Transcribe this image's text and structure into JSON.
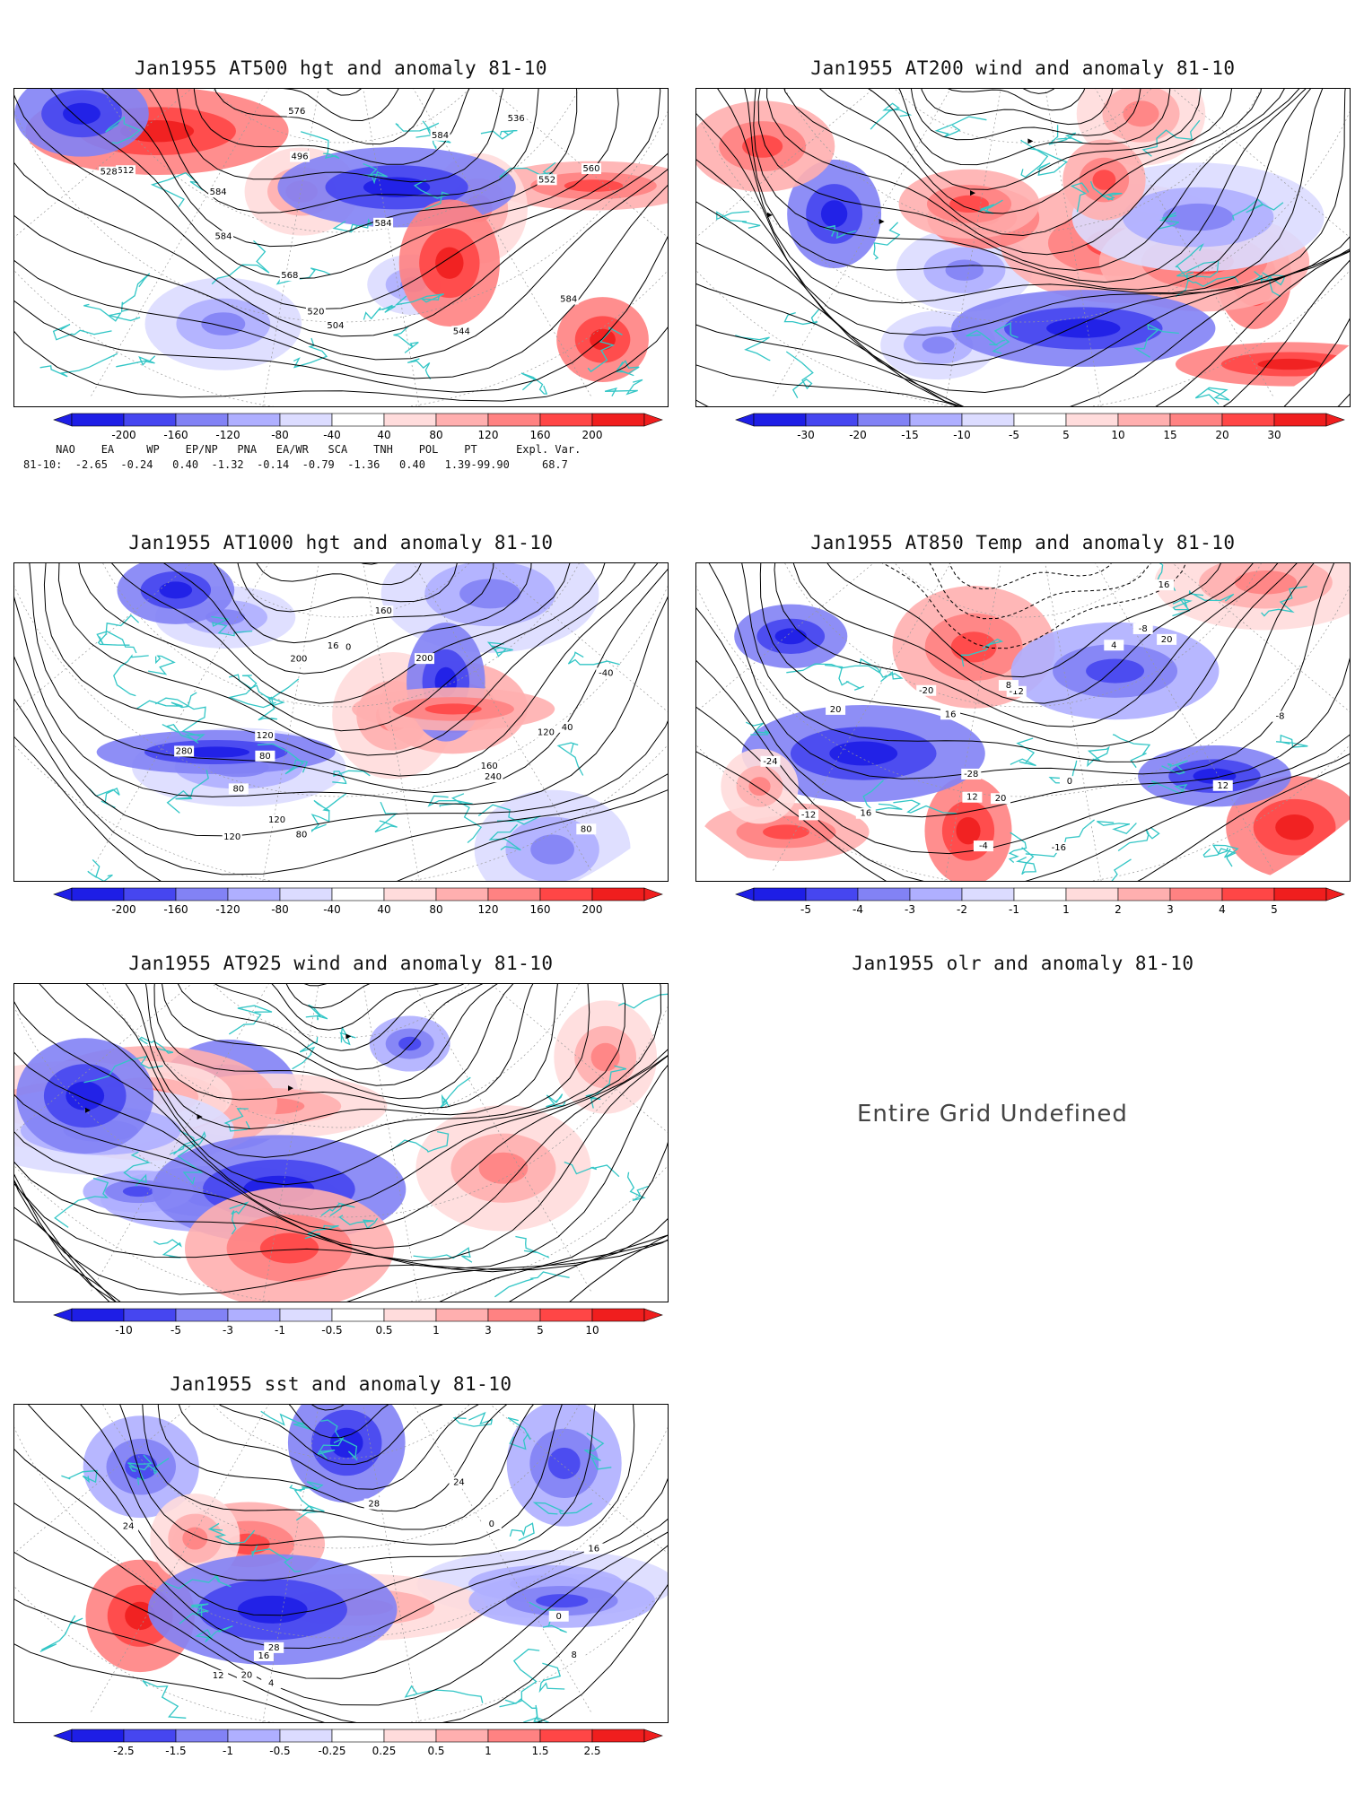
{
  "panels": [
    {
      "id": "p500",
      "title": "Jan1955 AT500 hgt and anomaly 81-10",
      "ticks": [
        "-200",
        "-160",
        "-120",
        "-80",
        "-40",
        "40",
        "80",
        "120",
        "160",
        "200"
      ],
      "contour_labels": [
        "496",
        "504",
        "512",
        "520",
        "528",
        "536",
        "544",
        "552",
        "560",
        "568",
        "576",
        "584",
        "584",
        "584",
        "584",
        "584"
      ],
      "theme": "warm-cold"
    },
    {
      "id": "p200",
      "title": "Jan1955 AT200 wind and anomaly 81-10",
      "ticks": [
        "-30",
        "-20",
        "-15",
        "-10",
        "-5",
        "5",
        "10",
        "15",
        "20",
        "30"
      ],
      "contour_labels": [],
      "theme": "stream"
    },
    {
      "id": "p1000",
      "title": "Jan1955 AT1000 hgt and anomaly 81-10",
      "ticks": [
        "-200",
        "-160",
        "-120",
        "-80",
        "-40",
        "40",
        "80",
        "120",
        "160",
        "200"
      ],
      "contour_labels": [
        "160",
        "120",
        "80",
        "40",
        "0",
        "-40",
        "200",
        "280",
        "240",
        "200",
        "160",
        "120",
        "80",
        "120",
        "80",
        "160",
        "120",
        "80"
      ],
      "theme": "warm-cold"
    },
    {
      "id": "p850",
      "title": "Jan1955 AT850 Temp and anomaly 81-10",
      "ticks": [
        "-5",
        "-4",
        "-3",
        "-2",
        "-1",
        "1",
        "2",
        "3",
        "4",
        "5"
      ],
      "contour_labels": [
        "-12",
        "-8",
        "-28",
        "-24",
        "-20",
        "-16",
        "-12",
        "-8",
        "-4",
        "0",
        "4",
        "8",
        "12",
        "16",
        "20",
        "16",
        "16",
        "12",
        "20",
        "20"
      ],
      "theme": "warm-cold"
    },
    {
      "id": "p925",
      "title": "Jan1955 AT925 wind and anomaly 81-10",
      "ticks": [
        "-10",
        "-5",
        "-3",
        "-1",
        "-0.5",
        "0.5",
        "1",
        "3",
        "5",
        "10"
      ],
      "contour_labels": [],
      "theme": "stream"
    },
    {
      "id": "psst",
      "title": "Jan1955 sst and anomaly 81-10",
      "ticks": [
        "-2.5",
        "-1.5",
        "-1",
        "-0.5",
        "-0.25",
        "0.25",
        "0.5",
        "1",
        "1.5",
        "2.5"
      ],
      "contour_labels": [
        "0",
        "0",
        "4",
        "8",
        "12",
        "16",
        "20",
        "24",
        "28",
        "28",
        "24",
        "16"
      ],
      "theme": "sst"
    }
  ],
  "olr": {
    "title": "Jan1955 olr and anomaly 81-10",
    "message": "Entire Grid Undefined"
  },
  "indices": {
    "header": "     NAO    EA     WP    EP/NP   PNA   EA/WR   SCA    TNH    POL    PT      Expl. Var.",
    "row": "81-10:  -2.65  -0.24   0.40  -1.32  -0.14  -0.79  -1.36   0.40   1.39-99.90     68.7"
  },
  "colors": {
    "blue": [
      "#1e1ee6",
      "#4646f0",
      "#8282f5",
      "#afafff",
      "#dcdcff"
    ],
    "red": [
      "#ffdcdc",
      "#ffafaf",
      "#ff8282",
      "#ff4646",
      "#f01e1e"
    ],
    "coast": "#33c6c6"
  }
}
